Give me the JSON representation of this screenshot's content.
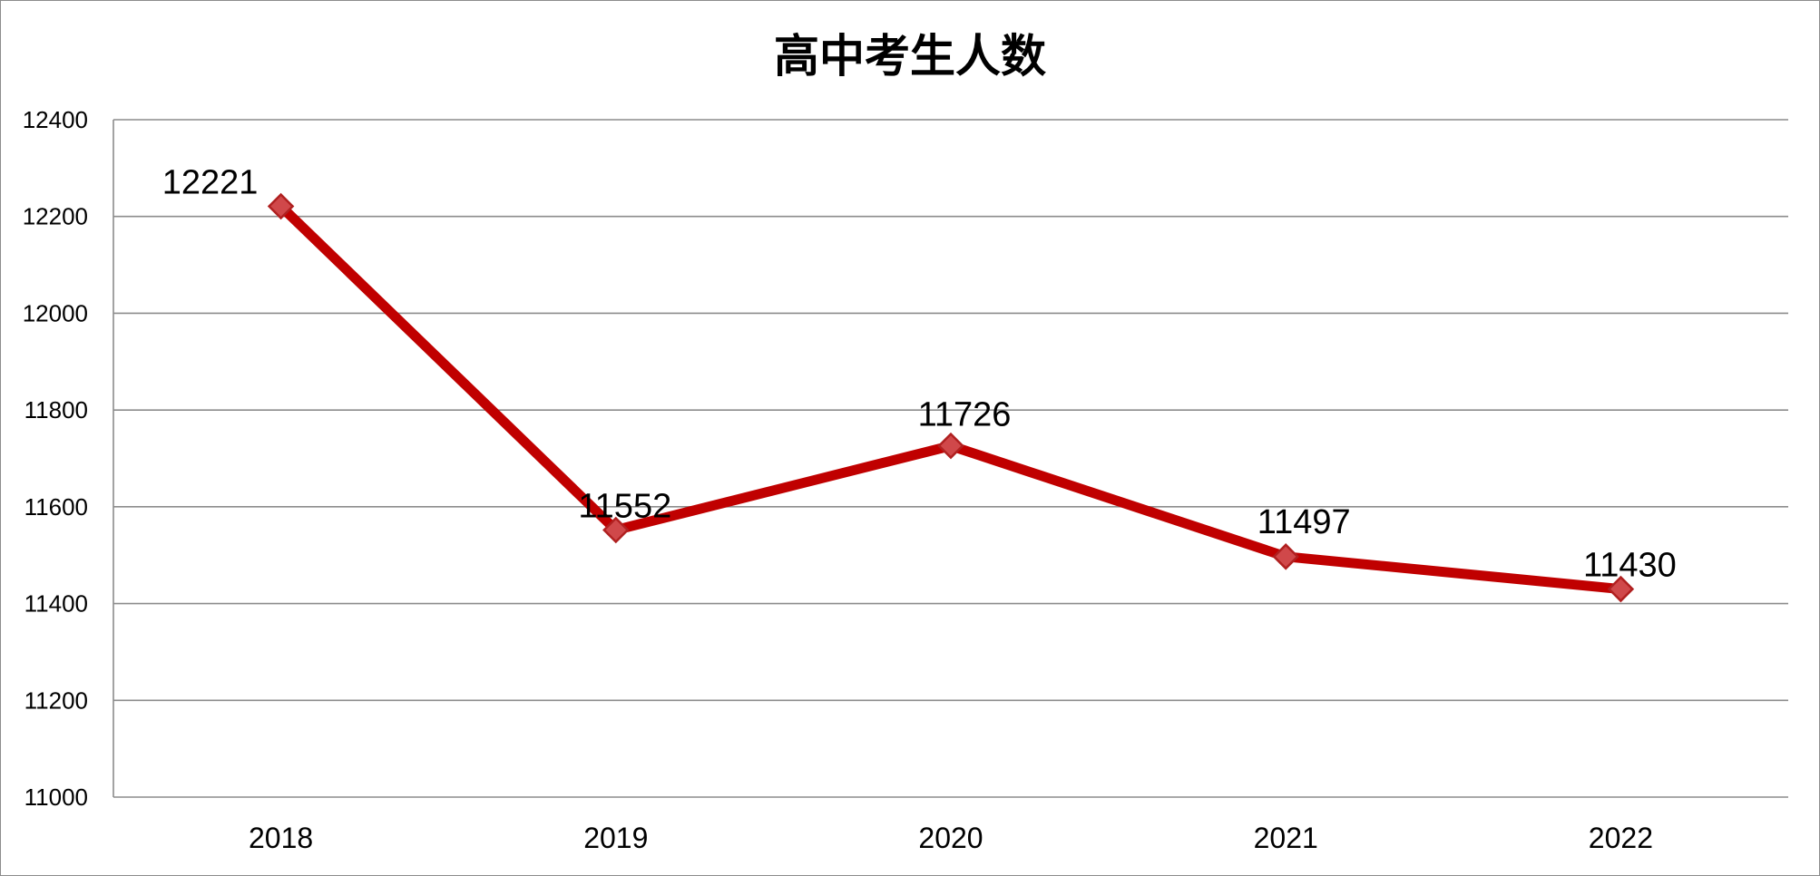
{
  "chart_data": {
    "type": "line",
    "title": "高中考生人数",
    "xlabel": "",
    "ylabel": "",
    "categories": [
      "2018",
      "2019",
      "2020",
      "2021",
      "2022"
    ],
    "series": [
      {
        "values": [
          12221,
          11552,
          11726,
          11497,
          11430
        ],
        "color": "#c00000",
        "marker_fill": "#d0484a",
        "marker_stroke": "#b02020",
        "marker": "diamond",
        "data_labels": [
          "12221",
          "11552",
          "11726",
          "11497",
          "11430"
        ]
      }
    ],
    "ylim": [
      11000,
      12400
    ],
    "y_ticks": [
      11000,
      11200,
      11400,
      11600,
      11800,
      12000,
      12200,
      12400
    ],
    "y_tick_labels": [
      "11000",
      "11200",
      "11400",
      "11600",
      "11800",
      "12000",
      "12200",
      "12400"
    ],
    "grid": true,
    "legend": "none"
  }
}
